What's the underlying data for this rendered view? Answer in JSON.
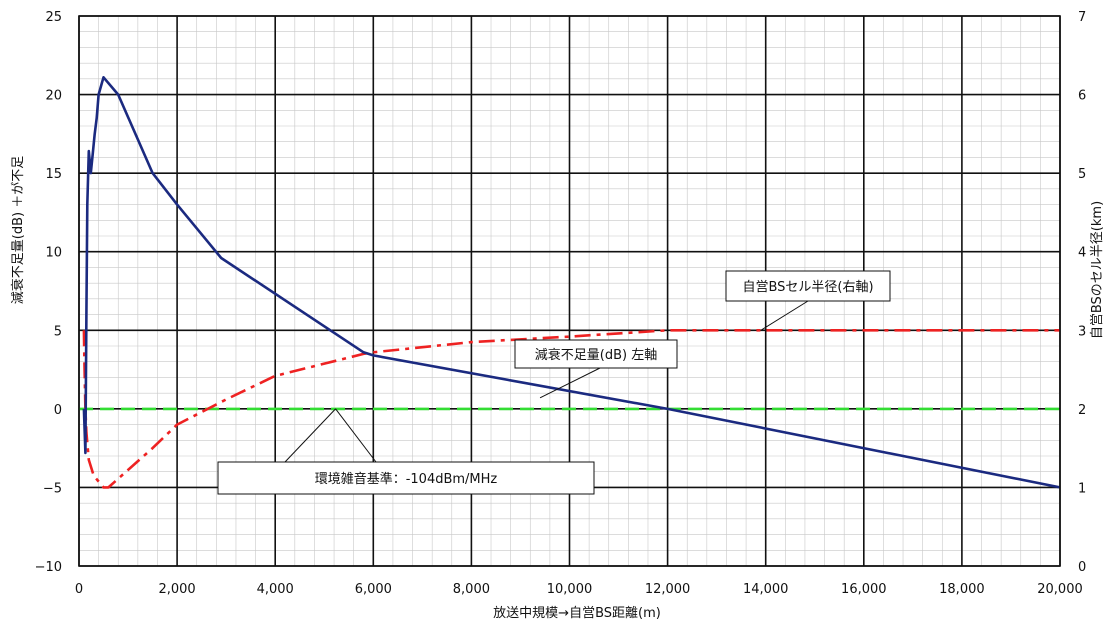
{
  "chart_data": {
    "type": "line",
    "title": "",
    "xlabel": "放送中規模→自営BS距離(m)",
    "ylabel_left": "減衰不足量(dB) ＋が不足",
    "ylabel_right": "自営BSのセル半径(km)",
    "xlim": [
      0,
      20000
    ],
    "ylim_left": [
      -10,
      25
    ],
    "ylim_right": [
      0,
      7
    ],
    "x_ticks": [
      "0",
      "2,000",
      "4,000",
      "6,000",
      "8,000",
      "10,000",
      "12,000",
      "14,000",
      "16,000",
      "18,000",
      "20,000"
    ],
    "y_left_ticks": [
      "−10",
      "−5",
      "0",
      "5",
      "10",
      "15",
      "20",
      "25"
    ],
    "y_right_ticks": [
      "0",
      "1",
      "2",
      "3",
      "4",
      "5",
      "6",
      "7"
    ],
    "grid": true,
    "series": [
      {
        "name": "減衰不足量(dB) 左軸",
        "axis": "left",
        "color": "#1b2a80",
        "style": "solid",
        "x": [
          100,
          130,
          150,
          170,
          200,
          240,
          280,
          320,
          360,
          400,
          500,
          800,
          1500,
          2000,
          2900,
          5800,
          6000,
          12000,
          20000
        ],
        "y": [
          0,
          -2.8,
          6,
          13,
          16.4,
          15,
          16.2,
          17.5,
          18.5,
          20,
          21.1,
          20,
          15,
          13,
          9.6,
          3.6,
          3.4,
          0,
          -5
        ]
      },
      {
        "name": "自営BSセル半径(右軸)",
        "axis": "right",
        "color": "#ee2222",
        "style": "dash-dot",
        "x": [
          100,
          110,
          130,
          150,
          200,
          300,
          500,
          600,
          1500,
          2000,
          3000,
          4000,
          5800,
          6000,
          8000,
          10000,
          11000,
          12000,
          20000
        ],
        "y": [
          3.0,
          2.6,
          2.0,
          1.7,
          1.35,
          1.15,
          1.0,
          1.0,
          1.5,
          1.8,
          2.12,
          2.42,
          2.7,
          2.72,
          2.85,
          2.92,
          2.96,
          3.0,
          3.0
        ]
      },
      {
        "name": "環境雑音基準：-104dBm/MHz",
        "axis": "left",
        "color": "#33dd33",
        "style": "dashed",
        "x": [
          0,
          20000
        ],
        "y": [
          0,
          0
        ]
      }
    ],
    "annotations": [
      "自営BSセル半径(右軸)",
      "減衰不足量(dB) 左軸",
      "環境雑音基準：-104dBm/MHz"
    ]
  }
}
